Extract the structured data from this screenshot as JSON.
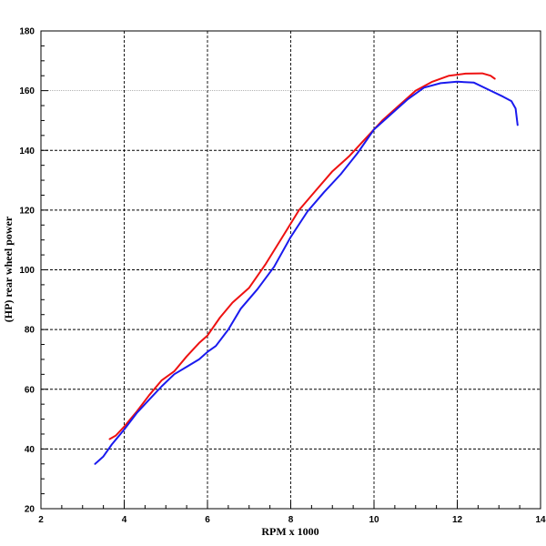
{
  "chart_data": {
    "type": "line",
    "title": "",
    "xlabel": "RPM x 1000",
    "ylabel": "(HP) rear wheel power",
    "xlim": [
      2,
      14
    ],
    "ylim": [
      20,
      180
    ],
    "xticks": [
      2,
      4,
      6,
      8,
      10,
      12,
      14
    ],
    "yticks": [
      20,
      40,
      60,
      80,
      100,
      120,
      140,
      160,
      180
    ],
    "grid": true,
    "legend": "none",
    "series": [
      {
        "color": "#ee1111",
        "points": [
          [
            3.65,
            43.3
          ],
          [
            3.8,
            44.5
          ],
          [
            4.0,
            47.5
          ],
          [
            4.3,
            52.5
          ],
          [
            4.6,
            58
          ],
          [
            4.9,
            63
          ],
          [
            5.2,
            66
          ],
          [
            5.5,
            71
          ],
          [
            5.8,
            75.5
          ],
          [
            6.0,
            78
          ],
          [
            6.3,
            84
          ],
          [
            6.6,
            89
          ],
          [
            7.0,
            94
          ],
          [
            7.4,
            102
          ],
          [
            7.8,
            111
          ],
          [
            8.2,
            120
          ],
          [
            8.6,
            126.5
          ],
          [
            9.0,
            133
          ],
          [
            9.4,
            138
          ],
          [
            9.8,
            144
          ],
          [
            10.2,
            150
          ],
          [
            10.6,
            155
          ],
          [
            11.0,
            160
          ],
          [
            11.4,
            163
          ],
          [
            11.8,
            165
          ],
          [
            12.2,
            165.7
          ],
          [
            12.6,
            165.8
          ],
          [
            12.8,
            165
          ],
          [
            12.9,
            164
          ]
        ]
      },
      {
        "color": "#1a1aee",
        "points": [
          [
            3.3,
            35
          ],
          [
            3.5,
            37.5
          ],
          [
            3.7,
            41.5
          ],
          [
            4.0,
            46.5
          ],
          [
            4.3,
            52
          ],
          [
            4.6,
            56.5
          ],
          [
            4.9,
            61
          ],
          [
            5.2,
            65
          ],
          [
            5.5,
            67.5
          ],
          [
            5.8,
            70
          ],
          [
            6.0,
            72.5
          ],
          [
            6.2,
            74.5
          ],
          [
            6.5,
            80
          ],
          [
            6.8,
            87
          ],
          [
            7.2,
            93.5
          ],
          [
            7.6,
            101
          ],
          [
            8.0,
            111
          ],
          [
            8.4,
            119.5
          ],
          [
            8.8,
            126
          ],
          [
            9.2,
            132
          ],
          [
            9.6,
            139
          ],
          [
            10.0,
            147
          ],
          [
            10.4,
            152
          ],
          [
            10.8,
            157
          ],
          [
            11.2,
            161
          ],
          [
            11.6,
            162.5
          ],
          [
            12.0,
            163
          ],
          [
            12.4,
            162.7
          ],
          [
            12.8,
            160
          ],
          [
            13.1,
            158
          ],
          [
            13.3,
            156.5
          ],
          [
            13.4,
            154
          ],
          [
            13.45,
            148.5
          ]
        ]
      }
    ]
  }
}
